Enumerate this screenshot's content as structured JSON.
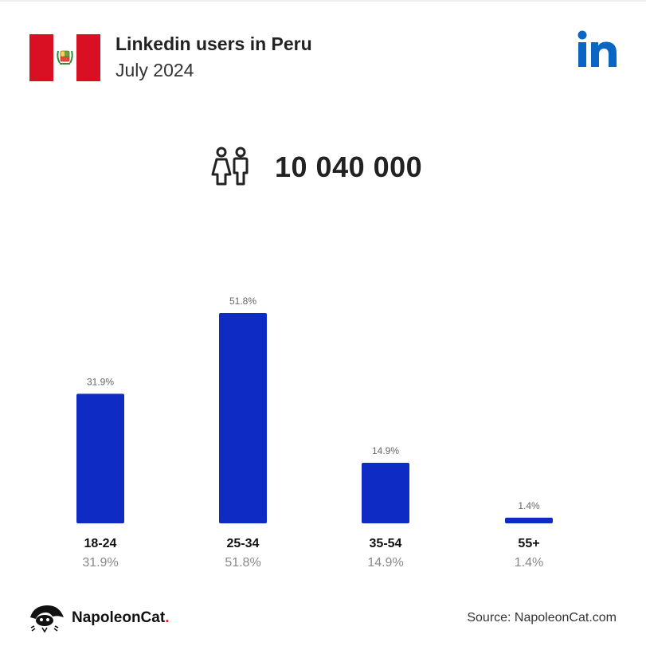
{
  "header": {
    "title": "Linkedin users in Peru",
    "subtitle": "July 2024"
  },
  "summary": {
    "total_users": "10 040 000"
  },
  "colors": {
    "bar": "#0e2bc4",
    "flag_red": "#d91023",
    "linkedin_blue": "#0a66c2",
    "brand_dot": "#e4252c"
  },
  "icons": {
    "flag": "peru-flag-icon",
    "linkedin": "linkedin-logo-icon",
    "users": "users-icon",
    "brand": "napoleoncat-logo-icon"
  },
  "chart_data": {
    "type": "bar",
    "title": "Linkedin users in Peru",
    "categories": [
      "18-24",
      "25-34",
      "35-54",
      "55+"
    ],
    "values": [
      31.9,
      51.8,
      14.9,
      1.4
    ],
    "value_labels": [
      "31.9%",
      "51.8%",
      "14.9%",
      "1.4%"
    ],
    "ylim": [
      0,
      51.8
    ],
    "grid": false,
    "legend": "none"
  },
  "footer": {
    "brand_name": "NapoleonCat",
    "brand_dot": ".",
    "source": "Source: NapoleonCat.com"
  }
}
